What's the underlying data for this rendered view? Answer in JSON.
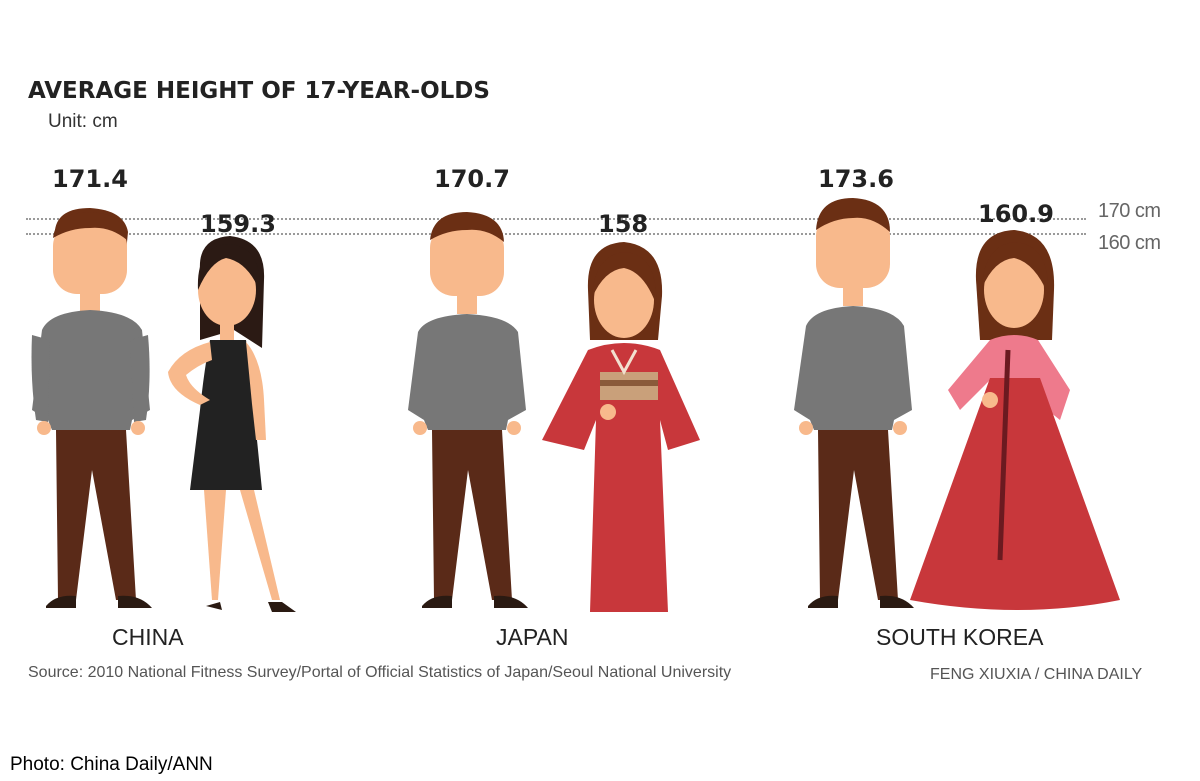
{
  "chart_data": {
    "type": "bar",
    "title": "AVERAGE HEIGHT OF 17-YEAR-OLDS",
    "unit_label": "Unit: cm",
    "categories": [
      "CHINA",
      "JAPAN",
      "SOUTH KOREA"
    ],
    "series": [
      {
        "values": [
          171.4,
          170.7,
          173.6
        ]
      },
      {
        "values": [
          159.3,
          158,
          160.9
        ]
      }
    ],
    "value_labels": {
      "male": [
        "171.4",
        "170.7",
        "173.6"
      ],
      "female": [
        "159.3",
        "158",
        "160.9"
      ]
    },
    "reference_lines": [
      {
        "value": 170,
        "label": "170 cm"
      },
      {
        "value": 160,
        "label": "160 cm"
      }
    ],
    "source": "Source: 2010 National Fitness Survey/Portal of Official Statistics of Japan/Seoul National University",
    "credit": "FENG XIUXIA / CHINA DAILY"
  },
  "photo_credit": "Photo: China Daily/ANN",
  "colors": {
    "skin": "#f8b98c",
    "hair_male": "#6b2f14",
    "hair_female": "#5a2410",
    "shirt": "#777777",
    "trousers": "#5a2a18",
    "shoes": "#2a1a12",
    "dress_black": "#222222",
    "kimono_red": "#c8373b",
    "obi": "#c9a07a",
    "hanbok_pink": "#ee7a8c",
    "hanbok_red": "#c8373b"
  }
}
